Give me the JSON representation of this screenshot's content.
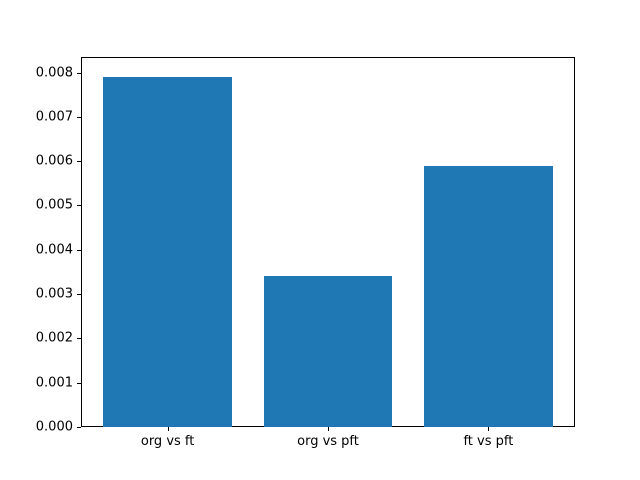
{
  "chart_data": {
    "type": "bar",
    "title": "",
    "xlabel": "",
    "ylabel": "",
    "categories": [
      "org vs ft",
      "org vs pft",
      "ft vs pft"
    ],
    "values": [
      0.0079,
      0.0034,
      0.0059
    ],
    "ylim": [
      0,
      0.00835
    ],
    "yticks": [
      0,
      0.001,
      0.002,
      0.003,
      0.004,
      0.005,
      0.006,
      0.007,
      0.008
    ],
    "ytick_labels": [
      "0.000",
      "0.001",
      "0.002",
      "0.003",
      "0.004",
      "0.005",
      "0.006",
      "0.007",
      "0.008"
    ],
    "bar_color": "#1f77b4",
    "bar_width_fraction": 0.8,
    "grid": false,
    "legend": null,
    "background_color": "#ffffff",
    "spine_color": "#000000"
  }
}
